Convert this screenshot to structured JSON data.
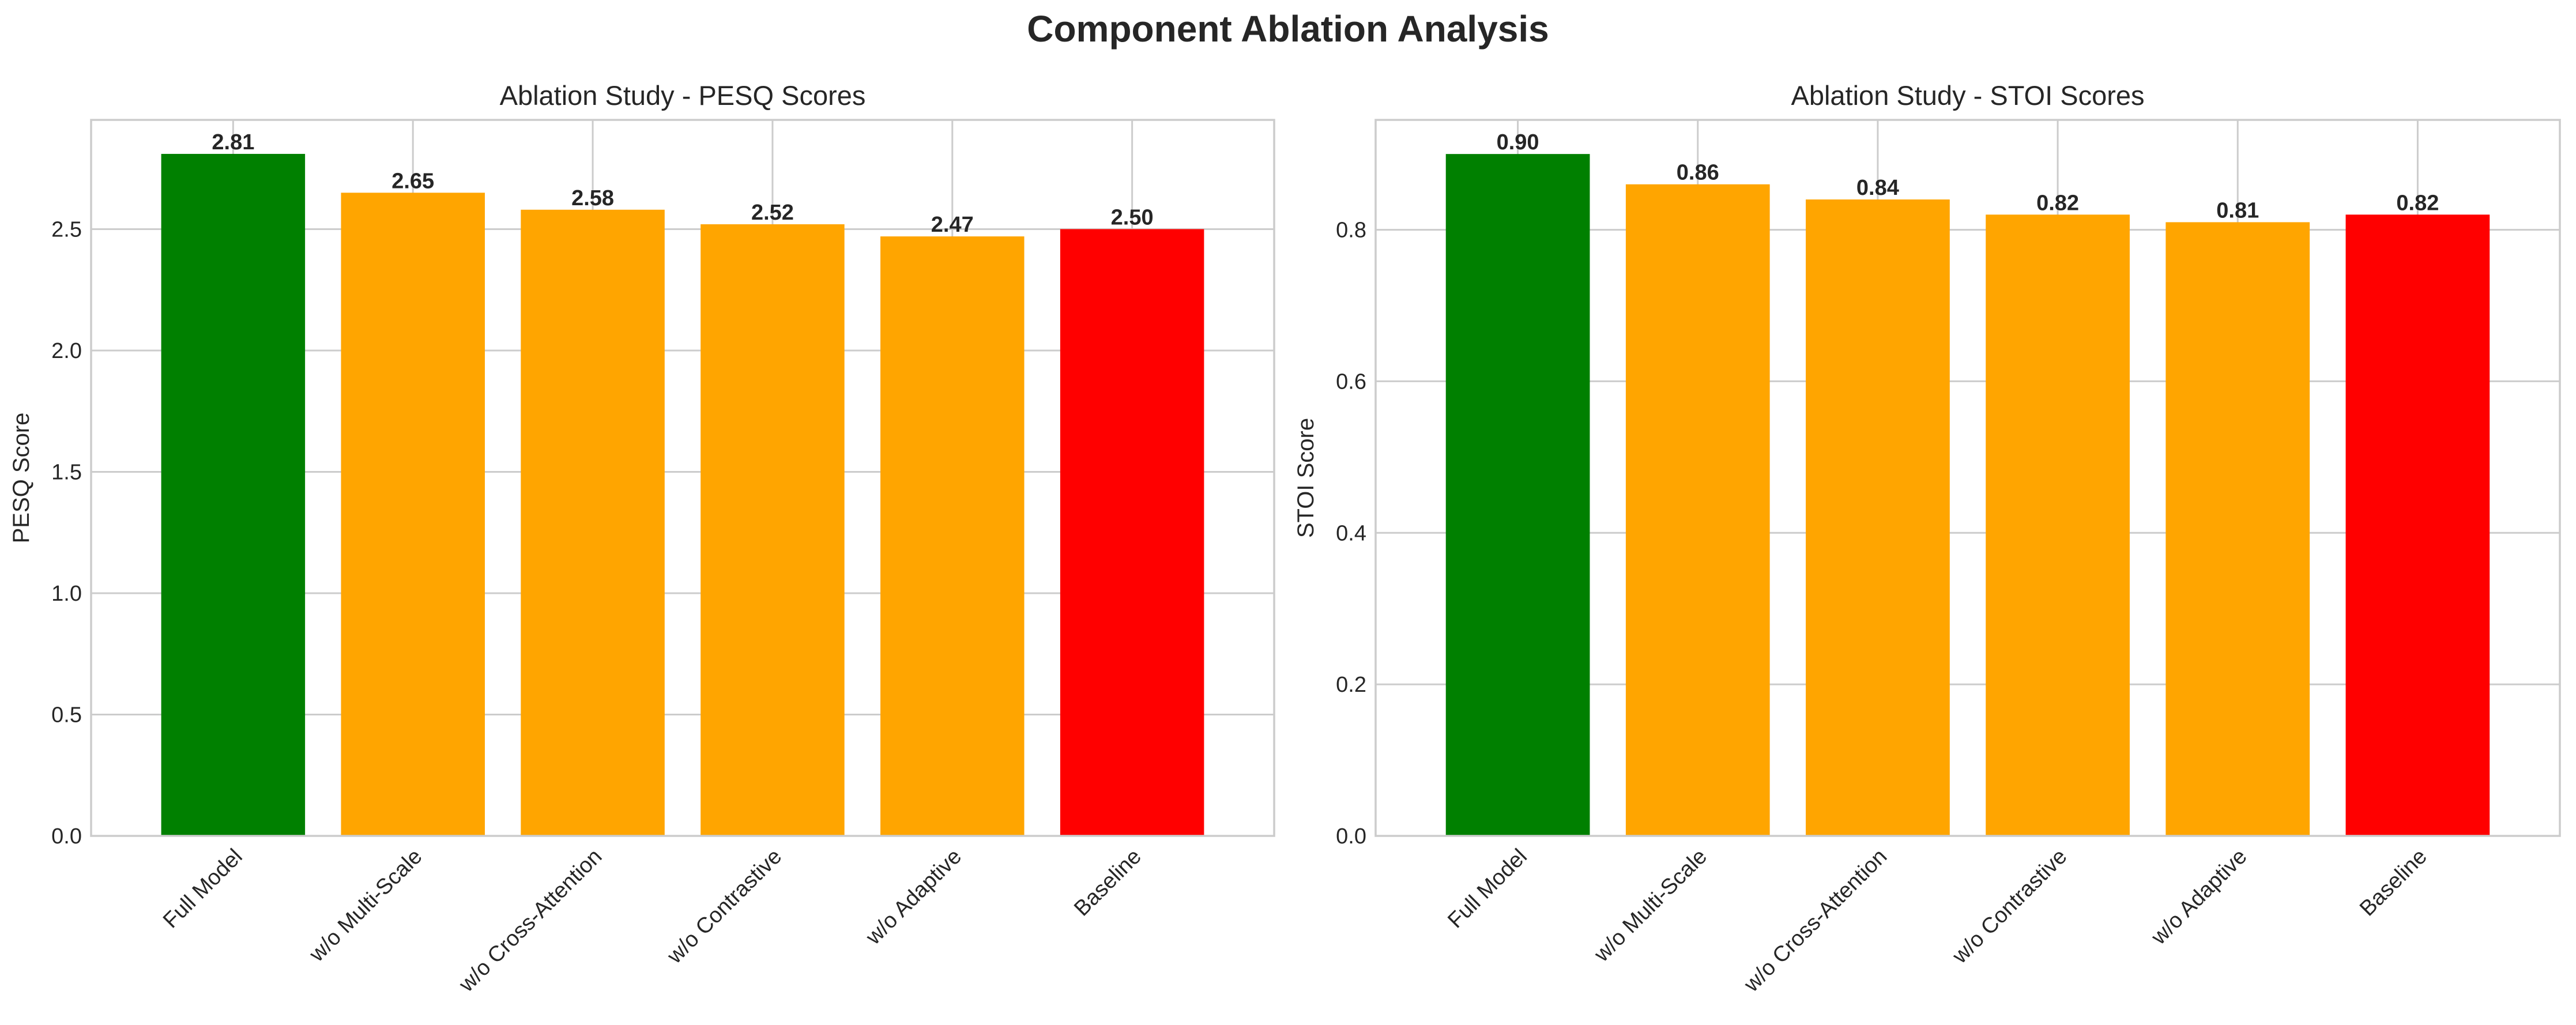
{
  "figure": {
    "title": "Component Ablation Analysis"
  },
  "chart_data": [
    {
      "type": "bar",
      "title": "Ablation Study - PESQ Scores",
      "xlabel": "",
      "ylabel": "PESQ Score",
      "categories": [
        "Full Model",
        "w/o Multi-Scale",
        "w/o Cross-Attention",
        "w/o Contrastive",
        "w/o Adaptive",
        "Baseline"
      ],
      "values": [
        2.81,
        2.65,
        2.58,
        2.52,
        2.47,
        2.5
      ],
      "data_labels": [
        "2.81",
        "2.65",
        "2.58",
        "2.52",
        "2.47",
        "2.50"
      ],
      "colors": [
        "#008000",
        "#FFA500",
        "#FFA500",
        "#FFA500",
        "#FFA500",
        "#FF0000"
      ],
      "ylim": [
        0,
        2.95
      ],
      "yticks": [
        0.0,
        0.5,
        1.0,
        1.5,
        2.0,
        2.5
      ],
      "ytick_labels": [
        "0.0",
        "0.5",
        "1.0",
        "1.5",
        "2.0",
        "2.5"
      ],
      "grid": true
    },
    {
      "type": "bar",
      "title": "Ablation Study - STOI Scores",
      "xlabel": "",
      "ylabel": "STOI Score",
      "categories": [
        "Full Model",
        "w/o Multi-Scale",
        "w/o Cross-Attention",
        "w/o Contrastive",
        "w/o Adaptive",
        "Baseline"
      ],
      "values": [
        0.9,
        0.86,
        0.84,
        0.82,
        0.81,
        0.82
      ],
      "data_labels": [
        "0.90",
        "0.86",
        "0.84",
        "0.82",
        "0.81",
        "0.82"
      ],
      "colors": [
        "#008000",
        "#FFA500",
        "#FFA500",
        "#FFA500",
        "#FFA500",
        "#FF0000"
      ],
      "ylim": [
        0,
        0.945
      ],
      "yticks": [
        0.0,
        0.2,
        0.4,
        0.6,
        0.8
      ],
      "ytick_labels": [
        "0.0",
        "0.2",
        "0.4",
        "0.6",
        "0.8"
      ],
      "grid": true
    }
  ]
}
